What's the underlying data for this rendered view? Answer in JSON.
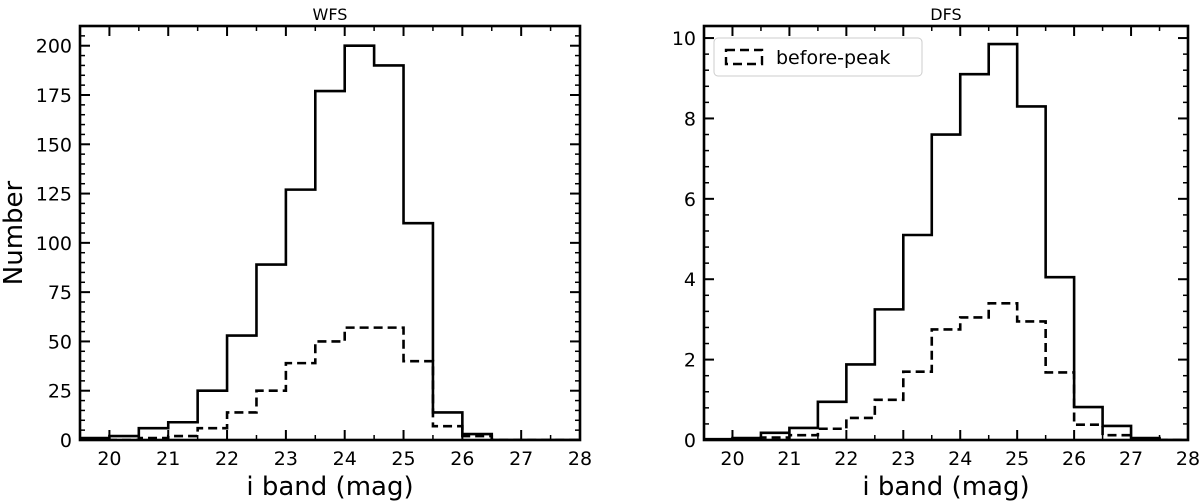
{
  "chart_data": [
    {
      "type": "histogram",
      "title": "WFS",
      "xlabel": "i band (mag)",
      "ylabel": "Number",
      "xlim": [
        19.5,
        28
      ],
      "ylim": [
        0,
        210
      ],
      "xticks": [
        20,
        21,
        22,
        23,
        24,
        25,
        26,
        27,
        28
      ],
      "yticks": [
        0,
        25,
        50,
        75,
        100,
        125,
        150,
        175,
        200
      ],
      "grid": false,
      "legend": null,
      "bin_edges": [
        19.5,
        20,
        20.5,
        21,
        21.5,
        22,
        22.5,
        23,
        23.5,
        24,
        24.5,
        25,
        25.5,
        26,
        26.5,
        27,
        27.5,
        28
      ],
      "series": [
        {
          "style": "solid",
          "values": [
            1,
            2,
            6,
            9,
            25,
            53,
            89,
            127,
            177,
            200,
            190,
            110,
            14,
            3,
            0,
            0,
            0
          ]
        },
        {
          "name": "before-peak",
          "style": "dashed",
          "values": [
            0,
            0,
            1,
            2,
            6,
            14,
            25,
            39,
            50,
            57,
            57,
            40,
            7,
            2,
            0,
            0,
            0
          ]
        }
      ]
    },
    {
      "type": "histogram",
      "title": "DFS",
      "xlabel": "i band (mag)",
      "ylabel": "",
      "xlim": [
        19.5,
        28
      ],
      "ylim": [
        0,
        10.3
      ],
      "xticks": [
        20,
        21,
        22,
        23,
        24,
        25,
        26,
        27,
        28
      ],
      "yticks": [
        0,
        2,
        4,
        6,
        8,
        10
      ],
      "grid": false,
      "legend": "top-left",
      "bin_edges": [
        19.5,
        20,
        20.5,
        21,
        21.5,
        22,
        22.5,
        23,
        23.5,
        24,
        24.5,
        25,
        25.5,
        26,
        26.5,
        27,
        27.5,
        28
      ],
      "series": [
        {
          "style": "solid",
          "values": [
            0.02,
            0.05,
            0.18,
            0.3,
            0.95,
            1.88,
            3.25,
            5.1,
            7.6,
            9.1,
            9.85,
            8.3,
            4.05,
            0.82,
            0.35,
            0.05,
            0
          ]
        },
        {
          "name": "before-peak",
          "style": "dashed",
          "values": [
            0,
            0.02,
            0.06,
            0.12,
            0.28,
            0.55,
            1.0,
            1.7,
            2.75,
            3.05,
            3.4,
            2.95,
            1.68,
            0.38,
            0.12,
            0.02,
            0
          ]
        }
      ]
    }
  ]
}
